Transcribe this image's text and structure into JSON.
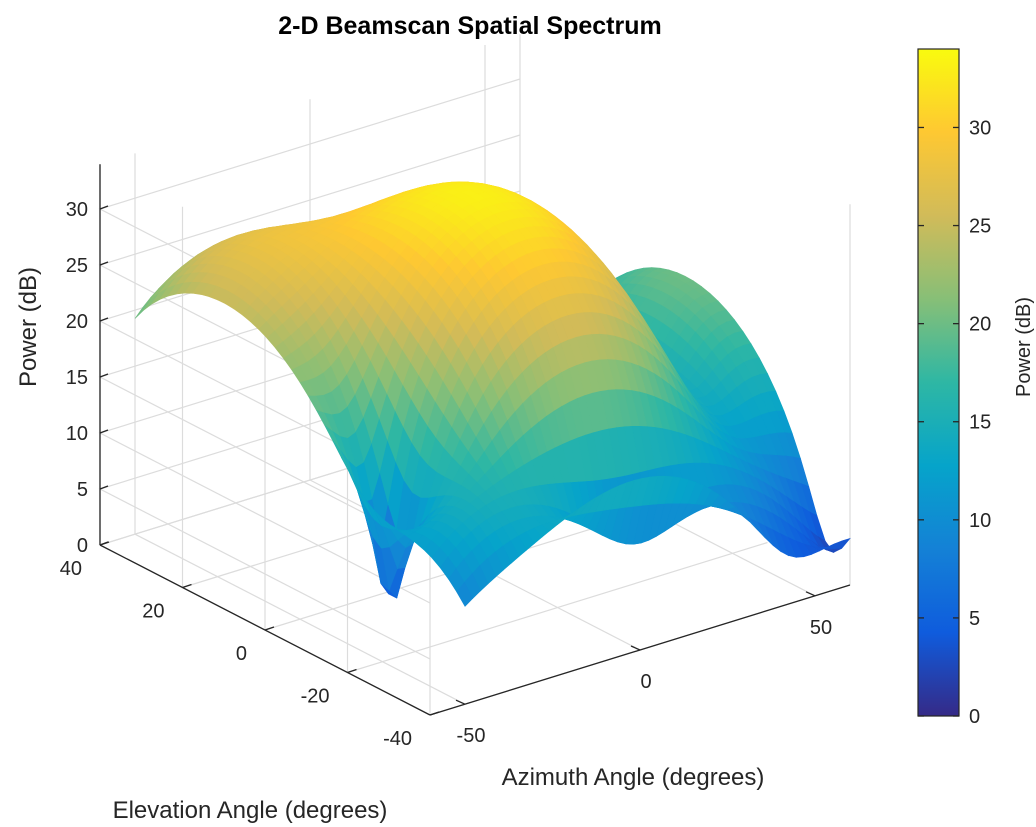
{
  "chart_data": {
    "type": "surface",
    "title": "2-D Beamscan Spatial Spectrum",
    "xlabel": "Azimuth Angle (degrees)",
    "ylabel": "Elevation Angle (degrees)",
    "zlabel": "Power (dB)",
    "xlim": [
      -60,
      60
    ],
    "ylim": [
      -40,
      40
    ],
    "zlim": [
      0,
      34
    ],
    "xticks": [
      -50,
      0,
      50
    ],
    "yticks": [
      40,
      20,
      0,
      -20,
      -40
    ],
    "zticks": [
      0,
      5,
      10,
      15,
      20,
      25,
      30
    ],
    "colormap": "parula",
    "grid": true,
    "view": "3-D (azimuth -37.5, elevation 30)",
    "peaks": [
      {
        "azimuth": -30,
        "elevation": 20,
        "power_db": 28
      },
      {
        "azimuth": 0,
        "elevation": 0,
        "power_db": 33
      },
      {
        "azimuth": 20,
        "elevation": 20,
        "power_db": 20
      },
      {
        "azimuth": 30,
        "elevation": -10,
        "power_db": 16
      }
    ],
    "colorbar": {
      "label": "Power (dB)",
      "ticks": [
        0,
        5,
        10,
        15,
        20,
        25,
        30
      ],
      "range": [
        0,
        34
      ]
    }
  }
}
